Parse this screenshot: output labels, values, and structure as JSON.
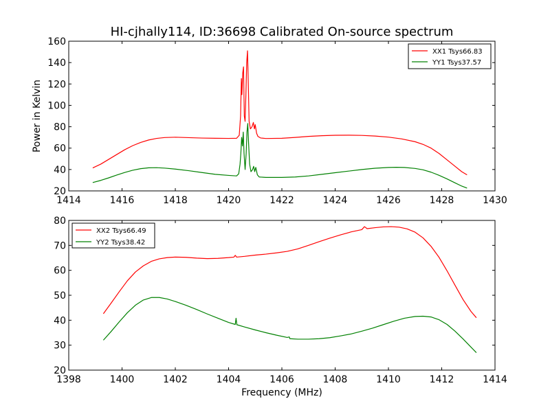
{
  "figure": {
    "title": "HI-cjhally114, ID:36698 Calibrated On-source spectrum"
  },
  "colors": {
    "xx": "#ff0000",
    "yy": "#008000",
    "axis": "#000000"
  },
  "chart_data": [
    {
      "type": "line",
      "title": "HI-cjhally114, ID:36698 Calibrated On-source spectrum",
      "xlabel": "",
      "ylabel": "Power in Kelvin",
      "xlim": [
        1414,
        1430
      ],
      "ylim": [
        20,
        160
      ],
      "xticks": [
        1414,
        1416,
        1418,
        1420,
        1422,
        1424,
        1426,
        1428,
        1430
      ],
      "yticks": [
        20,
        40,
        60,
        80,
        100,
        120,
        140,
        160
      ],
      "legend_position": "top-right",
      "series": [
        {
          "name": "XX1 Tsys66.83",
          "color": "#ff0000",
          "points": [
            [
              1414.9,
              41.5
            ],
            [
              1415.2,
              45
            ],
            [
              1415.5,
              49.5
            ],
            [
              1415.8,
              54
            ],
            [
              1416.1,
              58.5
            ],
            [
              1416.4,
              62.3
            ],
            [
              1416.7,
              65.3
            ],
            [
              1417.0,
              67.6
            ],
            [
              1417.3,
              69.1
            ],
            [
              1417.6,
              69.9
            ],
            [
              1418.0,
              70.2
            ],
            [
              1418.5,
              69.8
            ],
            [
              1419.0,
              69.4
            ],
            [
              1419.5,
              69.2
            ],
            [
              1420.0,
              69.1
            ],
            [
              1420.3,
              69.2
            ],
            [
              1420.4,
              72
            ],
            [
              1420.45,
              90
            ],
            [
              1420.48,
              125
            ],
            [
              1420.5,
              110
            ],
            [
              1420.53,
              130
            ],
            [
              1420.56,
              136
            ],
            [
              1420.59,
              90
            ],
            [
              1420.62,
              85
            ],
            [
              1420.65,
              110
            ],
            [
              1420.68,
              140
            ],
            [
              1420.71,
              151
            ],
            [
              1420.74,
              120
            ],
            [
              1420.77,
              85
            ],
            [
              1420.82,
              78
            ],
            [
              1420.88,
              80
            ],
            [
              1420.93,
              84
            ],
            [
              1420.97,
              78
            ],
            [
              1421.0,
              82
            ],
            [
              1421.05,
              74
            ],
            [
              1421.1,
              71
            ],
            [
              1421.2,
              69.5
            ],
            [
              1421.4,
              69
            ],
            [
              1422.0,
              69.2
            ],
            [
              1422.5,
              70
            ],
            [
              1423.0,
              71
            ],
            [
              1423.5,
              71.6
            ],
            [
              1424.0,
              72
            ],
            [
              1424.5,
              72.1
            ],
            [
              1425.0,
              71.9
            ],
            [
              1425.5,
              71.3
            ],
            [
              1426.0,
              70.3
            ],
            [
              1426.5,
              68.6
            ],
            [
              1427.0,
              66
            ],
            [
              1427.3,
              63.5
            ],
            [
              1427.6,
              60
            ],
            [
              1427.9,
              55
            ],
            [
              1428.2,
              49
            ],
            [
              1428.5,
              43
            ],
            [
              1428.75,
              38
            ],
            [
              1428.95,
              35
            ]
          ]
        },
        {
          "name": "YY1 Tsys37.57",
          "color": "#008000",
          "points": [
            [
              1414.9,
              27.8
            ],
            [
              1415.2,
              29.8
            ],
            [
              1415.5,
              32.2
            ],
            [
              1415.8,
              34.8
            ],
            [
              1416.1,
              37.2
            ],
            [
              1416.4,
              39.3
            ],
            [
              1416.7,
              40.8
            ],
            [
              1417.0,
              41.6
            ],
            [
              1417.3,
              41.7
            ],
            [
              1417.6,
              41.3
            ],
            [
              1418.0,
              40.4
            ],
            [
              1418.5,
              38.9
            ],
            [
              1419.0,
              37.2
            ],
            [
              1419.5,
              35.5
            ],
            [
              1420.0,
              34.5
            ],
            [
              1420.3,
              34
            ],
            [
              1420.38,
              36
            ],
            [
              1420.43,
              45
            ],
            [
              1420.46,
              55
            ],
            [
              1420.49,
              70
            ],
            [
              1420.52,
              62
            ],
            [
              1420.55,
              75
            ],
            [
              1420.58,
              55
            ],
            [
              1420.62,
              40
            ],
            [
              1420.66,
              55
            ],
            [
              1420.69,
              75
            ],
            [
              1420.72,
              83
            ],
            [
              1420.75,
              65
            ],
            [
              1420.79,
              45
            ],
            [
              1420.84,
              38
            ],
            [
              1420.9,
              40
            ],
            [
              1420.94,
              43
            ],
            [
              1420.98,
              38
            ],
            [
              1421.02,
              42
            ],
            [
              1421.08,
              35
            ],
            [
              1421.15,
              33
            ],
            [
              1421.4,
              32.6
            ],
            [
              1422.0,
              32.6
            ],
            [
              1422.5,
              33
            ],
            [
              1423.0,
              34
            ],
            [
              1423.5,
              35.5
            ],
            [
              1424.0,
              37
            ],
            [
              1424.5,
              38.5
            ],
            [
              1425.0,
              40
            ],
            [
              1425.5,
              41.2
            ],
            [
              1426.0,
              41.9
            ],
            [
              1426.3,
              42.1
            ],
            [
              1426.6,
              41.9
            ],
            [
              1427.0,
              41
            ],
            [
              1427.3,
              39.7
            ],
            [
              1427.6,
              37.5
            ],
            [
              1427.9,
              34.6
            ],
            [
              1428.2,
              31.2
            ],
            [
              1428.5,
              27.5
            ],
            [
              1428.75,
              24.5
            ],
            [
              1428.95,
              22.6
            ]
          ]
        }
      ]
    },
    {
      "type": "line",
      "title": "",
      "xlabel": "Frequency (MHz)",
      "ylabel": "",
      "xlim": [
        1398,
        1414
      ],
      "ylim": [
        20,
        80
      ],
      "xticks": [
        1398,
        1400,
        1402,
        1404,
        1406,
        1408,
        1410,
        1412,
        1414
      ],
      "yticks": [
        20,
        30,
        40,
        50,
        60,
        70,
        80
      ],
      "legend_position": "top-left",
      "series": [
        {
          "name": "XX2 Tsys66.49",
          "color": "#ff0000",
          "points": [
            [
              1399.3,
              42.6
            ],
            [
              1399.6,
              47
            ],
            [
              1399.9,
              51.5
            ],
            [
              1400.2,
              55.8
            ],
            [
              1400.5,
              59.3
            ],
            [
              1400.8,
              61.8
            ],
            [
              1401.1,
              63.6
            ],
            [
              1401.4,
              64.6
            ],
            [
              1401.7,
              65.1
            ],
            [
              1402.0,
              65.3
            ],
            [
              1402.4,
              65.2
            ],
            [
              1402.8,
              64.9
            ],
            [
              1403.2,
              64.7
            ],
            [
              1403.6,
              64.8
            ],
            [
              1404.0,
              65.1
            ],
            [
              1404.2,
              65.3
            ],
            [
              1404.25,
              66
            ],
            [
              1404.3,
              65.3
            ],
            [
              1404.6,
              65.6
            ],
            [
              1405.0,
              66.1
            ],
            [
              1405.4,
              66.5
            ],
            [
              1405.8,
              67
            ],
            [
              1406.2,
              67.6
            ],
            [
              1406.6,
              68.6
            ],
            [
              1407.0,
              70
            ],
            [
              1407.4,
              71.5
            ],
            [
              1407.8,
              72.9
            ],
            [
              1408.2,
              74.2
            ],
            [
              1408.6,
              75.4
            ],
            [
              1409.0,
              76.3
            ],
            [
              1409.1,
              77.5
            ],
            [
              1409.2,
              76.7
            ],
            [
              1409.5,
              77.1
            ],
            [
              1409.8,
              77.4
            ],
            [
              1410.1,
              77.5
            ],
            [
              1410.4,
              77.3
            ],
            [
              1410.7,
              76.6
            ],
            [
              1411.0,
              75.3
            ],
            [
              1411.3,
              73
            ],
            [
              1411.6,
              69.6
            ],
            [
              1411.9,
              65.2
            ],
            [
              1412.2,
              59.8
            ],
            [
              1412.5,
              54
            ],
            [
              1412.8,
              48.3
            ],
            [
              1413.1,
              43.5
            ],
            [
              1413.3,
              41
            ]
          ]
        },
        {
          "name": "YY2 Tsys38.42",
          "color": "#008000",
          "points": [
            [
              1399.3,
              32
            ],
            [
              1399.6,
              35.6
            ],
            [
              1399.9,
              39.4
            ],
            [
              1400.2,
              43
            ],
            [
              1400.5,
              46
            ],
            [
              1400.8,
              48.1
            ],
            [
              1401.1,
              49.1
            ],
            [
              1401.4,
              49.1
            ],
            [
              1401.7,
              48.5
            ],
            [
              1402.0,
              47.5
            ],
            [
              1402.4,
              46
            ],
            [
              1402.8,
              44.3
            ],
            [
              1403.2,
              42.5
            ],
            [
              1403.6,
              40.8
            ],
            [
              1404.0,
              39.1
            ],
            [
              1404.25,
              38.3
            ],
            [
              1404.28,
              40.8
            ],
            [
              1404.31,
              38.2
            ],
            [
              1404.6,
              37.3
            ],
            [
              1405.0,
              36.1
            ],
            [
              1405.4,
              35
            ],
            [
              1405.8,
              34
            ],
            [
              1406.2,
              33.1
            ],
            [
              1406.28,
              33.3
            ],
            [
              1406.3,
              32.6
            ],
            [
              1406.6,
              32.4
            ],
            [
              1407.0,
              32.4
            ],
            [
              1407.4,
              32.6
            ],
            [
              1407.8,
              33
            ],
            [
              1408.2,
              33.7
            ],
            [
              1408.6,
              34.5
            ],
            [
              1409.0,
              35.6
            ],
            [
              1409.4,
              36.8
            ],
            [
              1409.8,
              38.2
            ],
            [
              1410.2,
              39.6
            ],
            [
              1410.6,
              40.8
            ],
            [
              1411.0,
              41.5
            ],
            [
              1411.3,
              41.6
            ],
            [
              1411.6,
              41.3
            ],
            [
              1411.9,
              40.2
            ],
            [
              1412.2,
              38.3
            ],
            [
              1412.5,
              35.6
            ],
            [
              1412.8,
              32.5
            ],
            [
              1413.1,
              29.2
            ],
            [
              1413.3,
              27
            ]
          ]
        }
      ]
    }
  ]
}
